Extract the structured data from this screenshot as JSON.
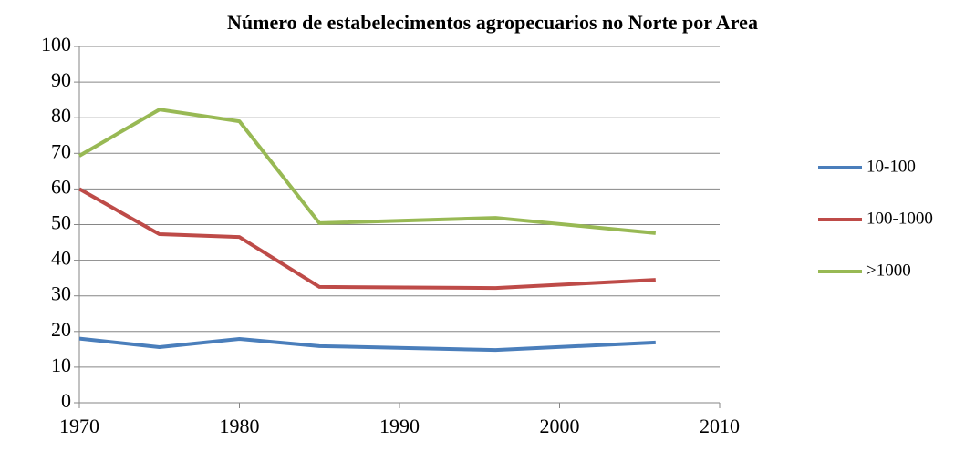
{
  "chart_data": {
    "type": "line",
    "title": "Número de estabelecimentos agropecuarios no Norte por Area",
    "x": [
      1970,
      1975,
      1980,
      1985,
      1996,
      2006
    ],
    "series": [
      {
        "name": "10-100",
        "color": "#4a7ebb",
        "values": [
          18,
          15.6,
          17.9,
          15.9,
          14.8,
          16.9
        ]
      },
      {
        "name": "100-1000",
        "color": "#be4b48",
        "values": [
          60,
          47.3,
          46.5,
          32.5,
          32.2,
          34.5
        ]
      },
      {
        "name": ">1000",
        "color": "#98b954",
        "values": [
          69.3,
          82.3,
          79,
          50.4,
          51.9,
          47.6
        ]
      }
    ],
    "xlim": [
      1970,
      2010
    ],
    "xticks": [
      1970,
      1980,
      1990,
      2000,
      2010
    ],
    "ylim": [
      0,
      100
    ],
    "yticks": [
      0,
      10,
      20,
      30,
      40,
      50,
      60,
      70,
      80,
      90,
      100
    ],
    "grid": true,
    "legend": "right"
  }
}
